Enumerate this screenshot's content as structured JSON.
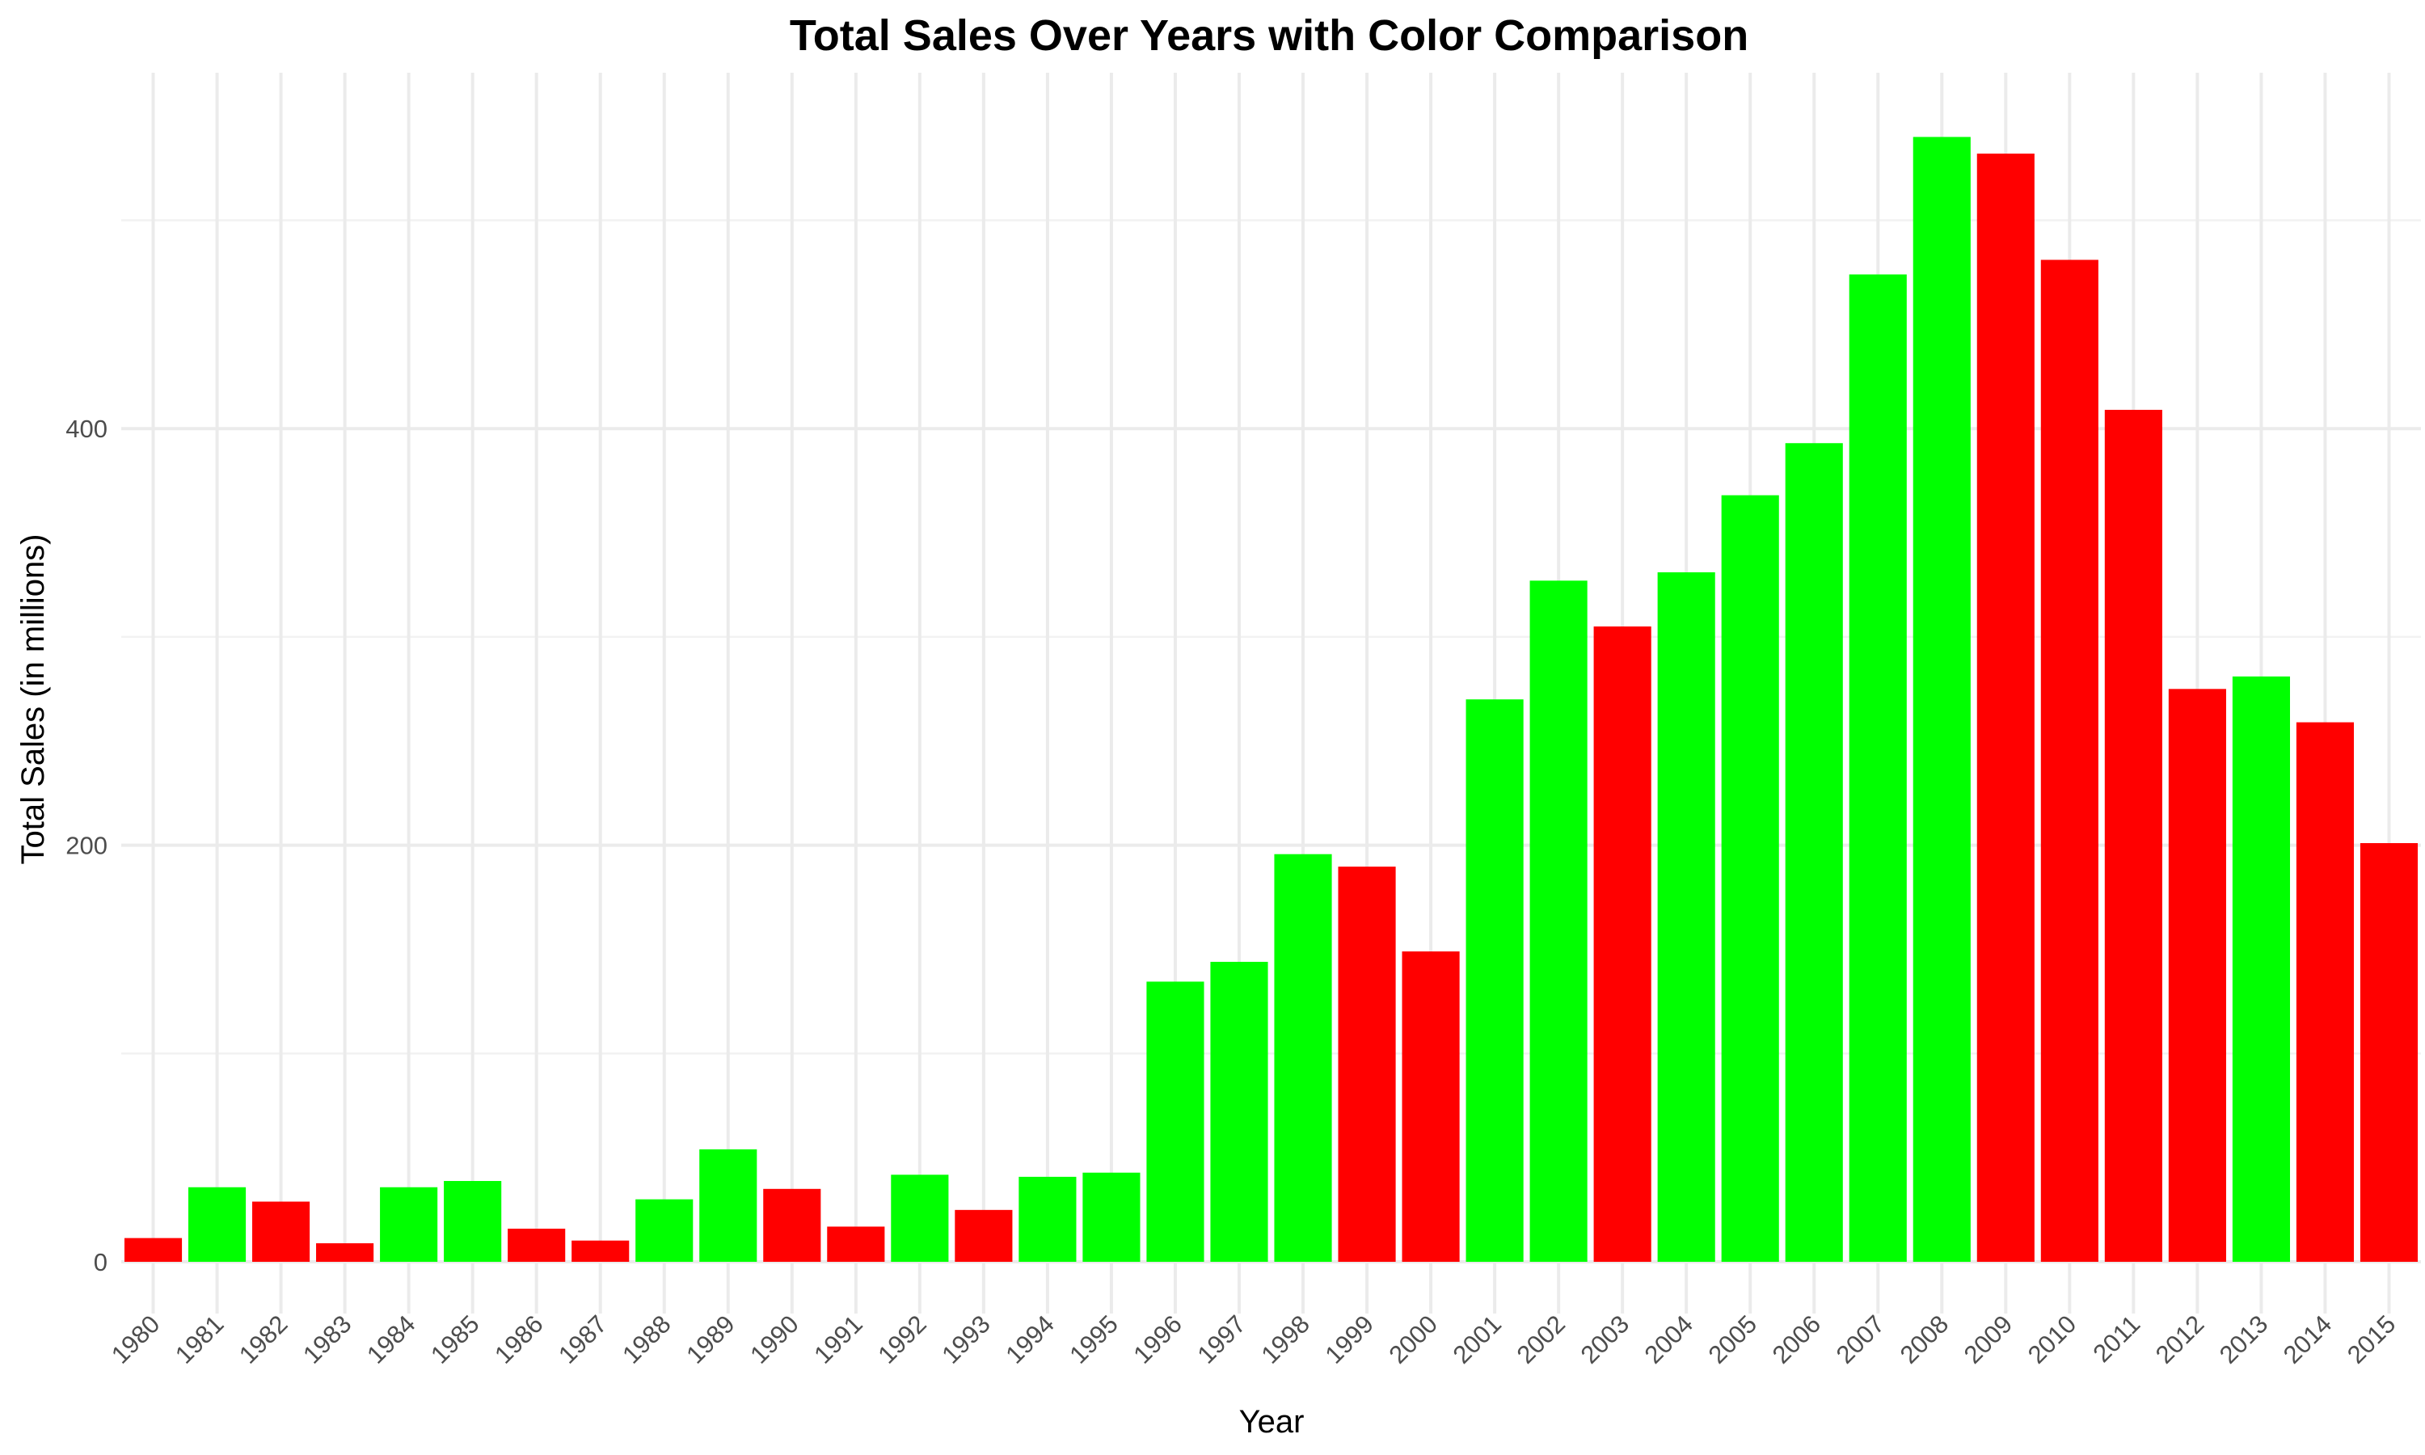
{
  "chart_data": {
    "type": "bar",
    "title": "Total Sales Over Years with Color Comparison",
    "xlabel": "Year",
    "ylabel": "Total Sales (in millions)",
    "ylim": [
      0,
      540
    ],
    "yticks": [
      0,
      200,
      400
    ],
    "grid": true,
    "legend": "none",
    "colors": {
      "increase": "#00ff00",
      "decrease": "#ff0000"
    },
    "categories": [
      "1980",
      "1981",
      "1982",
      "1983",
      "1984",
      "1985",
      "1986",
      "1987",
      "1988",
      "1989",
      "1990",
      "1991",
      "1992",
      "1993",
      "1994",
      "1995",
      "1996",
      "1997",
      "1998",
      "1999",
      "2000",
      "2001",
      "2002",
      "2003",
      "2004",
      "2005",
      "2006",
      "2007",
      "2008",
      "2009",
      "2010",
      "2011",
      "2012",
      "2013",
      "2014",
      "2015"
    ],
    "values": [
      11.4,
      35.8,
      28.9,
      8.9,
      35.8,
      38.8,
      15.9,
      10.2,
      30.0,
      54.0,
      35.0,
      16.9,
      41.8,
      24.9,
      40.8,
      42.8,
      134.5,
      144.0,
      195.7,
      189.7,
      149.0,
      270.0,
      327.0,
      305.0,
      331.0,
      368.0,
      393.0,
      474.0,
      540.0,
      532.0,
      481.0,
      409.0,
      275.0,
      281.0,
      259.0,
      201.0
    ],
    "bar_colors": [
      "red",
      "green",
      "red",
      "red",
      "green",
      "green",
      "red",
      "red",
      "green",
      "green",
      "red",
      "red",
      "green",
      "red",
      "green",
      "green",
      "green",
      "green",
      "green",
      "red",
      "red",
      "green",
      "green",
      "red",
      "green",
      "green",
      "green",
      "green",
      "green",
      "red",
      "red",
      "red",
      "red",
      "green",
      "red",
      "red"
    ]
  }
}
